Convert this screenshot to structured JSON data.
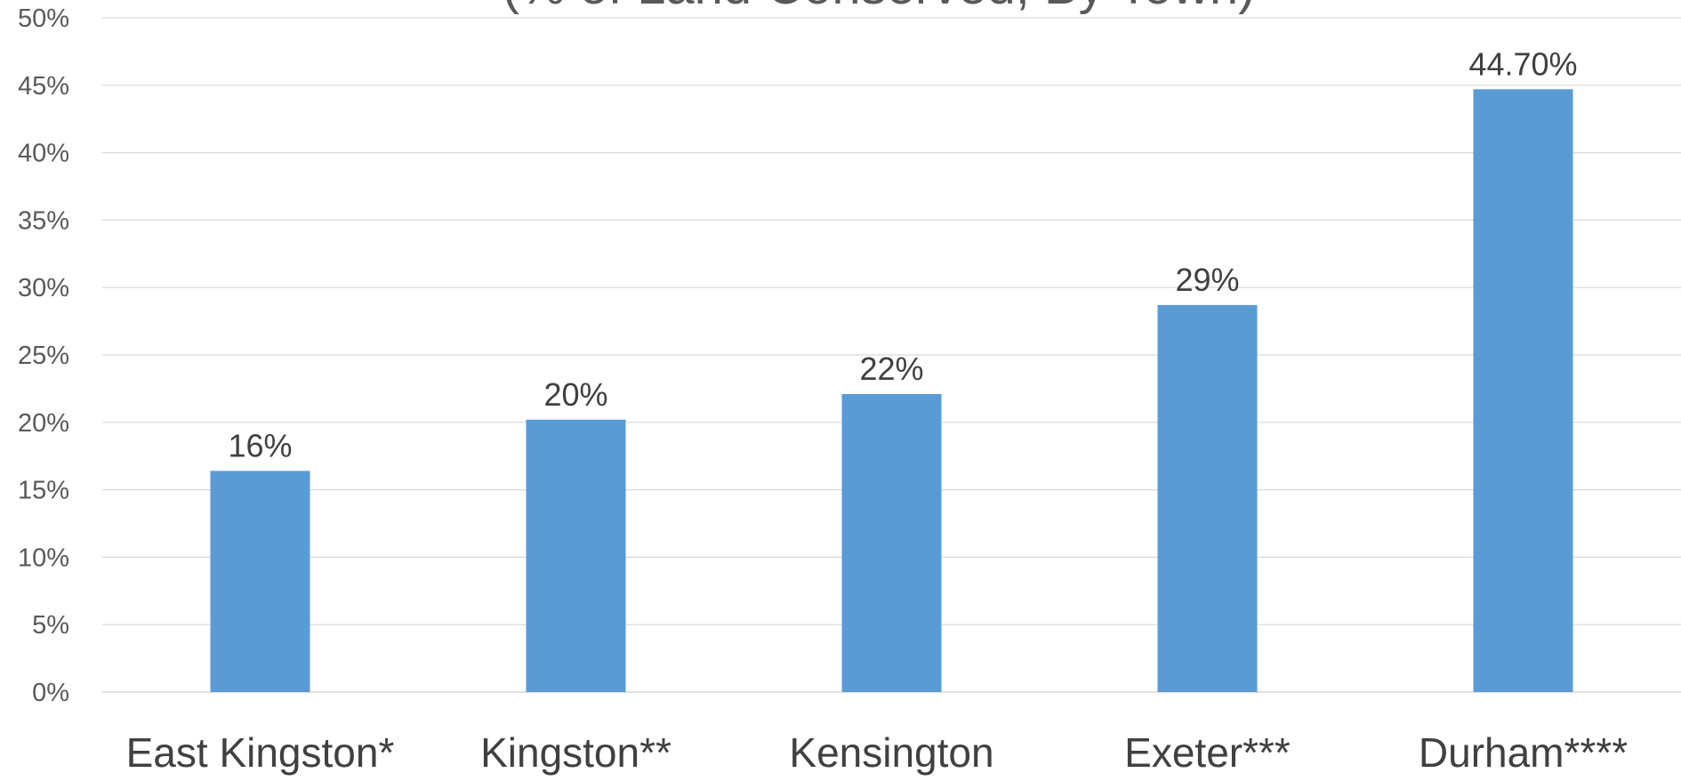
{
  "chart_data": {
    "type": "bar",
    "title": "(% of Land Conserved, By Town)",
    "xlabel": "",
    "ylabel": "",
    "ylim": [
      0,
      50
    ],
    "yticks": [
      "0%",
      "5%",
      "10%",
      "15%",
      "20%",
      "25%",
      "30%",
      "35%",
      "40%",
      "45%",
      "50%"
    ],
    "categories": [
      "East Kingston*",
      "Kingston**",
      "Kensington",
      "Exeter***",
      "Durham****"
    ],
    "values": [
      16.4,
      20.2,
      22.1,
      28.7,
      44.7
    ],
    "data_labels": [
      "16%",
      "20%",
      "22%",
      "29%",
      "44.70%"
    ],
    "grid": true,
    "legend": "none",
    "bar_color": "#5b9bd5"
  }
}
